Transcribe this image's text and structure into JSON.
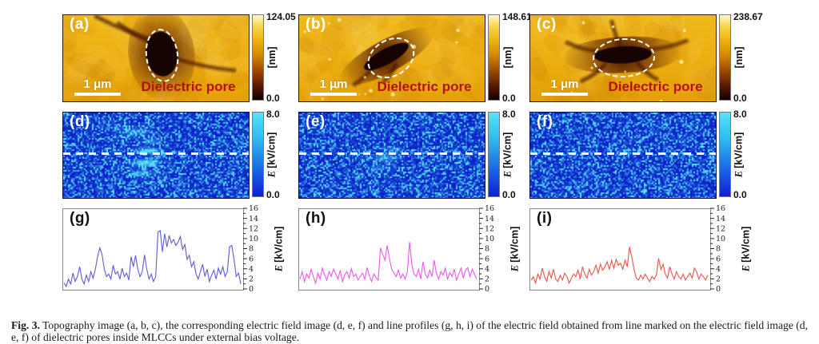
{
  "figure": {
    "caption_label": "Fig. 3.",
    "caption_text": "Topography image (a, b, c), the corresponding electric field image (d, e, f) and line profiles (g, h, i) of the electric field obtained from line marked on the electric field image (d, e, f) of dielectric pores inside MLCCs under external bias voltage."
  },
  "topography_panels": [
    {
      "label": "(a)",
      "scalebar_label": "1 μm",
      "annotation": "Dielectric pore",
      "colorbar_max": "124.05",
      "colorbar_min": "0.0",
      "colorbar_unit": "[nm]"
    },
    {
      "label": "(b)",
      "scalebar_label": "1 μm",
      "annotation": "Dielectric pore",
      "colorbar_max": "148.61",
      "colorbar_min": "0.0",
      "colorbar_unit": "[nm]"
    },
    {
      "label": "(c)",
      "scalebar_label": "1 μm",
      "annotation": "Dielectric pore",
      "colorbar_max": "238.67",
      "colorbar_min": "0.0",
      "colorbar_unit": "[nm]"
    }
  ],
  "efield_panels": [
    {
      "label": "(d)",
      "colorbar_max": "8.0",
      "colorbar_min": "0.0",
      "colorbar_unit_symbol": "E",
      "colorbar_unit_text": "[kV/cm]"
    },
    {
      "label": "(e)",
      "colorbar_max": "8.0",
      "colorbar_min": "0.0",
      "colorbar_unit_symbol": "E",
      "colorbar_unit_text": "[kV/cm]"
    },
    {
      "label": "(f)",
      "colorbar_max": "8.0",
      "colorbar_min": "0.0",
      "colorbar_unit_symbol": "E",
      "colorbar_unit_text": "[kV/cm]"
    }
  ],
  "colors": {
    "topo_background": "#edb117",
    "pore_core": "#160301",
    "annotation_red": "#b51111",
    "scalebar_white": "#ffffff",
    "topo_cbar_top": "#fff6cf",
    "topo_cbar_bottom": "#150000",
    "efield_base": "#0d26d2",
    "efield_speckle": "#50e1fa",
    "trace_g": "#5c5cd6",
    "trace_h": "#f055f0",
    "trace_i": "#e8534c"
  },
  "chart_data": [
    {
      "type": "line",
      "label": "(g)",
      "color": "#5c5cd6",
      "ylabel_symbol": "E",
      "ylabel_unit": "[kV/cm]",
      "ylim": [
        0,
        16
      ],
      "yticks": [
        0,
        2,
        4,
        6,
        8,
        10,
        12,
        14,
        16
      ],
      "values": [
        1.2,
        0.5,
        2.0,
        1.0,
        3.2,
        1.5,
        2.5,
        4.5,
        2.0,
        1.0,
        2.8,
        1.5,
        3.5,
        2.2,
        4.0,
        6.5,
        8.3,
        7.0,
        4.0,
        2.5,
        3.0,
        2.0,
        4.8,
        3.0,
        3.5,
        2.0,
        4.2,
        2.5,
        3.2,
        1.8,
        6.5,
        4.5,
        6.8,
        4.0,
        2.5,
        3.5,
        6.9,
        4.0,
        2.0,
        3.0,
        1.5,
        2.5,
        11.5,
        11.8,
        7.5,
        11.2,
        8.5,
        10.8,
        9.3,
        10.0,
        8.8,
        9.5,
        10.6,
        8.0,
        9.0,
        6.0,
        6.8,
        4.5,
        5.5,
        3.0,
        2.0,
        3.5,
        5.0,
        2.5,
        4.0,
        1.5,
        2.8,
        3.8,
        2.0,
        4.2,
        3.0,
        4.5,
        2.5,
        3.5,
        8.5,
        8.8,
        6.0,
        2.5,
        3.2,
        1.0
      ]
    },
    {
      "type": "line",
      "label": "(h)",
      "color": "#f055f0",
      "ylabel_symbol": "E",
      "ylabel_unit": "[kV/cm]",
      "ylim": [
        0,
        16
      ],
      "yticks": [
        0,
        2,
        4,
        6,
        8,
        10,
        12,
        14,
        16
      ],
      "values": [
        2.0,
        3.5,
        1.5,
        3.0,
        2.2,
        4.0,
        2.5,
        1.2,
        3.2,
        2.0,
        4.2,
        2.8,
        1.8,
        3.5,
        2.5,
        4.0,
        3.0,
        2.0,
        3.8,
        1.5,
        2.8,
        3.5,
        2.2,
        4.1,
        2.5,
        3.0,
        1.8,
        2.5,
        3.2,
        2.0,
        4.3,
        2.7,
        1.5,
        3.0,
        2.3,
        1.8,
        8.3,
        7.0,
        5.8,
        8.8,
        6.2,
        4.0,
        3.3,
        2.5,
        3.8,
        2.2,
        3.0,
        2.0,
        3.4,
        9.5,
        5.0,
        3.0,
        2.5,
        4.0,
        2.0,
        5.5,
        3.0,
        2.2,
        3.8,
        2.5,
        5.8,
        3.2,
        2.0,
        3.5,
        2.8,
        4.2,
        2.0,
        3.3,
        2.5,
        4.0,
        1.8,
        3.0,
        4.2,
        2.2,
        3.8,
        4.3,
        2.5,
        4.0,
        3.0,
        2.0
      ]
    },
    {
      "type": "line",
      "label": "(i)",
      "color": "#e8534c",
      "ylabel_symbol": "E",
      "ylabel_unit": "[kV/cm]",
      "ylim": [
        0,
        16
      ],
      "yticks": [
        0,
        2,
        4,
        6,
        8,
        10,
        12,
        14,
        16
      ],
      "values": [
        1.8,
        2.5,
        1.2,
        3.0,
        2.0,
        4.2,
        2.5,
        1.5,
        3.5,
        2.2,
        4.0,
        2.0,
        1.5,
        2.8,
        1.8,
        3.2,
        2.5,
        1.2,
        2.2,
        3.0,
        2.5,
        3.8,
        2.0,
        4.5,
        3.0,
        2.2,
        4.0,
        2.8,
        3.5,
        4.8,
        3.2,
        5.0,
        3.8,
        4.5,
        5.5,
        4.0,
        5.8,
        4.2,
        6.0,
        4.8,
        5.2,
        4.0,
        5.8,
        4.5,
        8.5,
        6.5,
        4.0,
        2.2,
        1.8,
        2.8,
        2.0,
        3.0,
        2.2,
        1.5,
        2.5,
        2.0,
        2.8,
        6.2,
        4.0,
        5.0,
        3.0,
        2.2,
        4.5,
        3.0,
        2.0,
        3.5,
        2.5,
        2.0,
        3.0,
        1.8,
        2.5,
        3.2,
        2.2,
        4.2,
        3.5,
        2.0,
        3.0,
        2.5,
        1.8,
        2.8
      ]
    }
  ]
}
